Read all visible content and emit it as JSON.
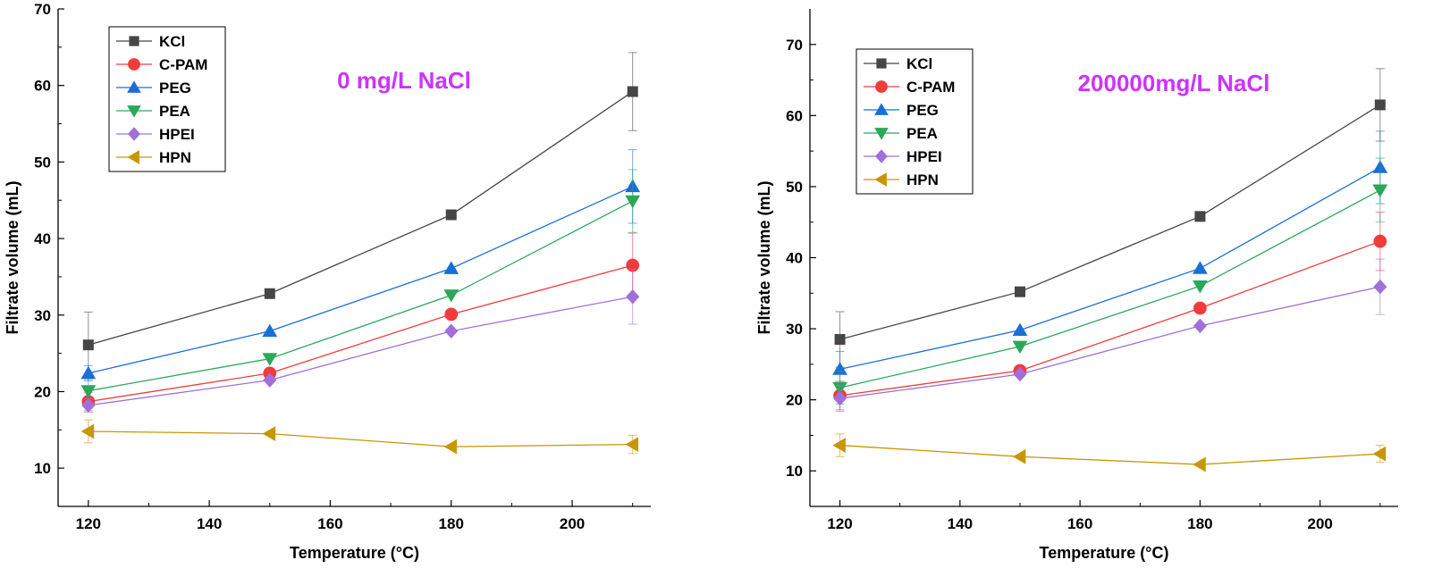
{
  "chart_data": [
    {
      "type": "line",
      "annotation": "0 mg/L NaCl",
      "annotation_color": "#cc33ff",
      "xlabel": "Temperature (°C)",
      "ylabel": "Filtrate volume (mL)",
      "xlim": [
        115,
        213
      ],
      "ylim": [
        5,
        70
      ],
      "x_ticks": [
        120,
        140,
        160,
        180,
        200
      ],
      "y_ticks": [
        10,
        20,
        30,
        40,
        50,
        60,
        70
      ],
      "legend_position": "top-left",
      "x": [
        120,
        150,
        180,
        210
      ],
      "series": [
        {
          "name": "KCl",
          "color": "#464646",
          "marker": "square",
          "values": [
            26.1,
            32.8,
            43.1,
            59.2
          ],
          "errors": [
            4.3,
            0,
            0,
            5.1
          ]
        },
        {
          "name": "C-PAM",
          "color": "#f03c3c",
          "marker": "circle",
          "values": [
            18.7,
            22.4,
            30.1,
            36.5
          ],
          "errors": [
            1.2,
            0,
            0,
            4.2
          ]
        },
        {
          "name": "PEG",
          "color": "#1a6fd6",
          "marker": "triangle-up",
          "values": [
            22.4,
            27.9,
            36.1,
            46.8
          ],
          "errors": [
            1.0,
            0,
            0,
            4.8
          ]
        },
        {
          "name": "PEA",
          "color": "#2aa85a",
          "marker": "triangle-down",
          "values": [
            20.1,
            24.3,
            32.6,
            44.9
          ],
          "errors": [
            1.5,
            0,
            0,
            4.1
          ]
        },
        {
          "name": "HPEI",
          "color": "#a070d8",
          "marker": "diamond",
          "values": [
            18.2,
            21.5,
            27.9,
            32.4
          ],
          "errors": [
            0.9,
            0,
            0,
            3.6
          ]
        },
        {
          "name": "HPN",
          "color": "#c89600",
          "marker": "triangle-left",
          "values": [
            14.8,
            14.5,
            12.8,
            13.1
          ],
          "errors": [
            1.5,
            0,
            0,
            1.2
          ]
        }
      ]
    },
    {
      "type": "line",
      "annotation": "200000mg/L NaCl",
      "annotation_color": "#cc33ff",
      "xlabel": "Temperature (°C)",
      "ylabel": "Filtrate volume (mL)",
      "xlim": [
        115,
        213
      ],
      "ylim": [
        5,
        75
      ],
      "x_ticks": [
        120,
        140,
        160,
        180,
        200
      ],
      "y_ticks": [
        10,
        20,
        30,
        40,
        50,
        60,
        70
      ],
      "legend_position": "top-left",
      "x": [
        120,
        150,
        180,
        210
      ],
      "series": [
        {
          "name": "KCl",
          "color": "#464646",
          "marker": "square",
          "values": [
            28.5,
            35.2,
            45.8,
            61.5
          ],
          "errors": [
            3.9,
            0,
            0,
            5.1
          ]
        },
        {
          "name": "C-PAM",
          "color": "#f03c3c",
          "marker": "circle",
          "values": [
            20.6,
            24.1,
            32.9,
            42.3
          ],
          "errors": [
            2.0,
            0,
            0,
            4.1
          ]
        },
        {
          "name": "PEG",
          "color": "#1a6fd6",
          "marker": "triangle-up",
          "values": [
            24.3,
            29.8,
            38.5,
            52.7
          ],
          "errors": [
            2.5,
            0,
            0,
            5.1
          ]
        },
        {
          "name": "PEA",
          "color": "#2aa85a",
          "marker": "triangle-down",
          "values": [
            21.7,
            27.5,
            36.0,
            49.5
          ],
          "errors": [
            2.3,
            0,
            0,
            4.5
          ]
        },
        {
          "name": "HPEI",
          "color": "#a070d8",
          "marker": "diamond",
          "values": [
            20.2,
            23.6,
            30.4,
            35.9
          ],
          "errors": [
            1.8,
            0,
            0,
            3.9
          ]
        },
        {
          "name": "HPN",
          "color": "#c89600",
          "marker": "triangle-left",
          "values": [
            13.6,
            12.0,
            10.9,
            12.4
          ],
          "errors": [
            1.6,
            0,
            0,
            1.2
          ]
        }
      ]
    }
  ]
}
